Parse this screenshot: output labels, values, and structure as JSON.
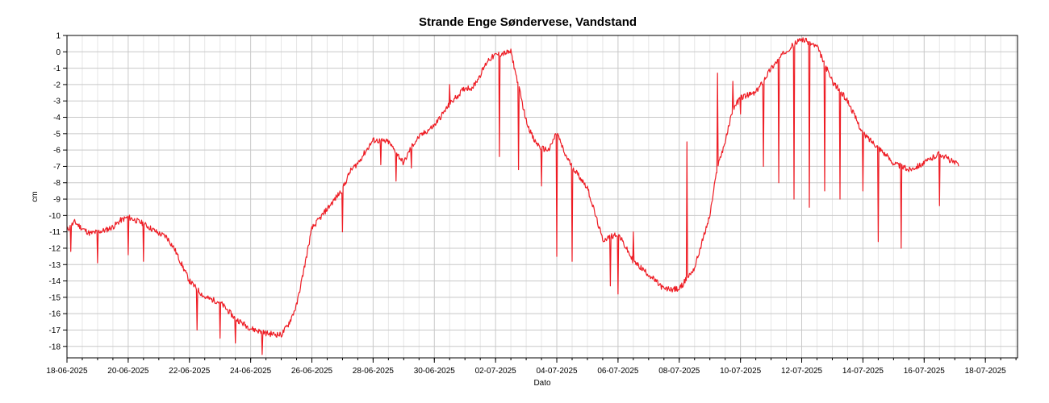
{
  "chart_data": {
    "type": "line",
    "title": "Strande Enge Søndervese, Vandstand",
    "xlabel": "Dato",
    "ylabel": "cm",
    "ylim": [
      -18.7,
      1.0
    ],
    "xlim": [
      "2025-06-18",
      "2025-07-18"
    ],
    "grid": true,
    "x_ticks": [
      "18-06-2025",
      "20-06-2025",
      "22-06-2025",
      "24-06-2025",
      "26-06-2025",
      "28-06-2025",
      "30-06-2025",
      "02-07-2025",
      "04-07-2025",
      "06-07-2025",
      "08-07-2025",
      "10-07-2025",
      "12-07-2025",
      "14-07-2025",
      "16-07-2025",
      "18-07-2025"
    ],
    "y_ticks": [
      1,
      0,
      -1,
      -2,
      -3,
      -4,
      -5,
      -6,
      -7,
      -8,
      -9,
      -10,
      -11,
      -12,
      -13,
      -14,
      -15,
      -16,
      -17,
      -18
    ],
    "series": [
      {
        "color": "#ee1c24",
        "x": [
          "2025-06-18 00:00",
          "2025-06-18 06:00",
          "2025-06-18 12:00",
          "2025-06-18 18:00",
          "2025-06-19 00:00",
          "2025-06-19 06:00",
          "2025-06-19 12:00",
          "2025-06-19 18:00",
          "2025-06-20 00:00",
          "2025-06-20 12:00",
          "2025-06-21 00:00",
          "2025-06-21 06:00",
          "2025-06-21 12:00",
          "2025-06-21 18:00",
          "2025-06-22 00:00",
          "2025-06-22 12:00",
          "2025-06-23 00:00",
          "2025-06-23 12:00",
          "2025-06-24 00:00",
          "2025-06-24 12:00",
          "2025-06-25 00:00",
          "2025-06-25 06:00",
          "2025-06-25 12:00",
          "2025-06-25 18:00",
          "2025-06-26 00:00",
          "2025-06-26 12:00",
          "2025-06-27 00:00",
          "2025-06-27 06:00",
          "2025-06-27 12:00",
          "2025-06-28 00:00",
          "2025-06-28 12:00",
          "2025-06-29 00:00",
          "2025-06-29 06:00",
          "2025-06-29 12:00",
          "2025-06-30 00:00",
          "2025-06-30 12:00",
          "2025-07-01 00:00",
          "2025-07-01 06:00",
          "2025-07-01 12:00",
          "2025-07-01 18:00",
          "2025-07-02 00:00",
          "2025-07-02 12:00",
          "2025-07-03 00:00",
          "2025-07-03 06:00",
          "2025-07-03 12:00",
          "2025-07-03 18:00",
          "2025-07-04 00:00",
          "2025-07-04 06:00",
          "2025-07-04 12:00",
          "2025-07-05 00:00",
          "2025-07-05 12:00",
          "2025-07-06 00:00",
          "2025-07-06 12:00",
          "2025-07-07 00:00",
          "2025-07-07 12:00",
          "2025-07-08 00:00",
          "2025-07-08 12:00",
          "2025-07-09 00:00",
          "2025-07-09 06:00",
          "2025-07-09 12:00",
          "2025-07-09 18:00",
          "2025-07-10 00:00",
          "2025-07-10 12:00",
          "2025-07-11 00:00",
          "2025-07-11 12:00",
          "2025-07-12 00:00",
          "2025-07-12 12:00",
          "2025-07-13 00:00",
          "2025-07-13 12:00",
          "2025-07-14 00:00",
          "2025-07-14 12:00",
          "2025-07-15 00:00",
          "2025-07-15 12:00",
          "2025-07-16 00:00",
          "2025-07-16 12:00",
          "2025-07-17 00:00",
          "2025-07-17 03:00"
        ],
        "y": [
          -10.9,
          -10.4,
          -10.8,
          -11.1,
          -11.0,
          -10.9,
          -10.7,
          -10.3,
          -10.1,
          -10.5,
          -11.1,
          -11.3,
          -12.0,
          -13.0,
          -14.0,
          -15.0,
          -15.3,
          -16.3,
          -16.9,
          -17.2,
          -17.3,
          -16.6,
          -15.5,
          -13.2,
          -10.8,
          -9.6,
          -8.4,
          -7.3,
          -6.8,
          -5.4,
          -5.5,
          -6.8,
          -5.8,
          -5.2,
          -4.5,
          -3.2,
          -2.2,
          -2.2,
          -1.4,
          -0.5,
          -0.2,
          0.0,
          -4.2,
          -5.4,
          -5.9,
          -6.0,
          -4.9,
          -6.2,
          -7.0,
          -8.3,
          -11.5,
          -11.1,
          -12.8,
          -13.6,
          -14.5,
          -14.5,
          -13.2,
          -10.0,
          -7.0,
          -5.5,
          -3.5,
          -2.8,
          -2.5,
          -1.0,
          0.1,
          0.8,
          0.3,
          -1.8,
          -3.0,
          -5.0,
          -5.8,
          -6.8,
          -7.2,
          -6.8,
          -6.2,
          -6.8,
          -6.9
        ],
        "dips_x": [
          "2025-06-18 03:00",
          "2025-06-19 00:00",
          "2025-06-20 00:00",
          "2025-06-20 12:00",
          "2025-06-22 06:00",
          "2025-06-23 00:00",
          "2025-06-23 12:00",
          "2025-06-24 09:00",
          "2025-06-25 06:00",
          "2025-06-27 00:00",
          "2025-06-28 06:00",
          "2025-06-28 18:00",
          "2025-06-29 06:00",
          "2025-06-30 12:00",
          "2025-07-01 06:00",
          "2025-07-02 03:00",
          "2025-07-02 18:00",
          "2025-07-03 12:00",
          "2025-07-04 00:00",
          "2025-07-04 12:00",
          "2025-07-05 18:00",
          "2025-07-06 00:00",
          "2025-07-06 12:00",
          "2025-07-08 06:00",
          "2025-07-09 06:00",
          "2025-07-09 18:00",
          "2025-07-10 00:00",
          "2025-07-10 18:00",
          "2025-07-11 06:00",
          "2025-07-11 18:00",
          "2025-07-12 06:00",
          "2025-07-12 18:00",
          "2025-07-13 06:00",
          "2025-07-14 00:00",
          "2025-07-14 12:00",
          "2025-07-15 06:00",
          "2025-07-16 12:00"
        ],
        "dips_y": [
          -12.2,
          -12.9,
          -12.4,
          -12.8,
          -17.0,
          -17.5,
          -17.8,
          -18.5,
          -16.5,
          -11.0,
          -6.9,
          -7.9,
          -7.1,
          -2.0,
          -2.2,
          -6.4,
          -7.2,
          -8.2,
          -12.5,
          -12.8,
          -14.3,
          -14.8,
          -11.0,
          -5.5,
          -1.3,
          -1.8,
          -3.8,
          -7.0,
          -8.0,
          -9.0,
          -9.5,
          -8.5,
          -9.0,
          -8.5,
          -11.6,
          -12.0,
          -9.4
        ]
      }
    ]
  }
}
